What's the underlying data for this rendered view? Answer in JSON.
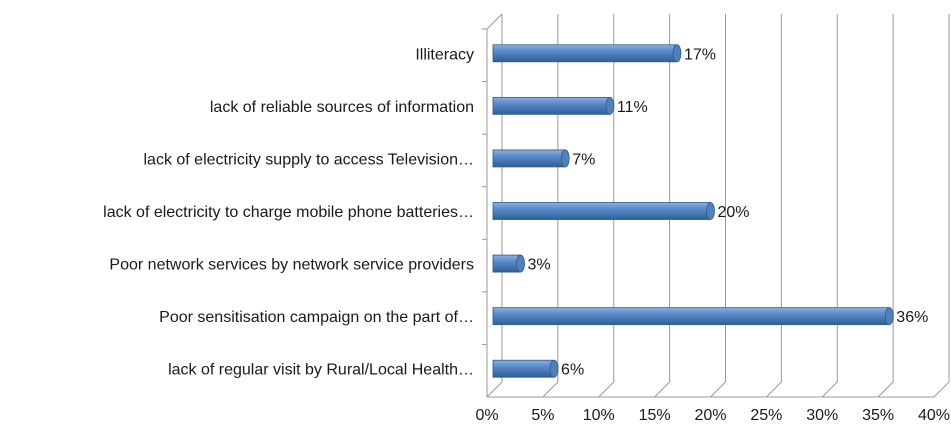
{
  "chart_data": {
    "type": "bar",
    "orientation": "horizontal",
    "style": "3d",
    "categories": [
      "Illiteracy",
      "lack of reliable sources of information",
      "lack of electricity supply to access Television…",
      "lack of electricity to charge mobile phone batteries…",
      "Poor network services by network service providers",
      "Poor sensitisation campaign on the part of…",
      "lack of regular visit by Rural/Local Health…"
    ],
    "values": [
      17,
      11,
      7,
      20,
      3,
      36,
      6
    ],
    "value_labels": [
      "17%",
      "11%",
      "7%",
      "20%",
      "3%",
      "36%",
      "6%"
    ],
    "xlim": [
      0,
      40
    ],
    "xticks": [
      "0%",
      "5%",
      "10%",
      "15%",
      "20%",
      "25%",
      "30%",
      "35%",
      "40%"
    ],
    "title": "",
    "xlabel": "",
    "ylabel": "",
    "grid": true,
    "legend": "none",
    "colors": {
      "bar": "#4f81bd",
      "bar_dark": "#2c5a8c",
      "bar_light": "#8fb0dc",
      "grid": "#9a9a9a"
    }
  }
}
